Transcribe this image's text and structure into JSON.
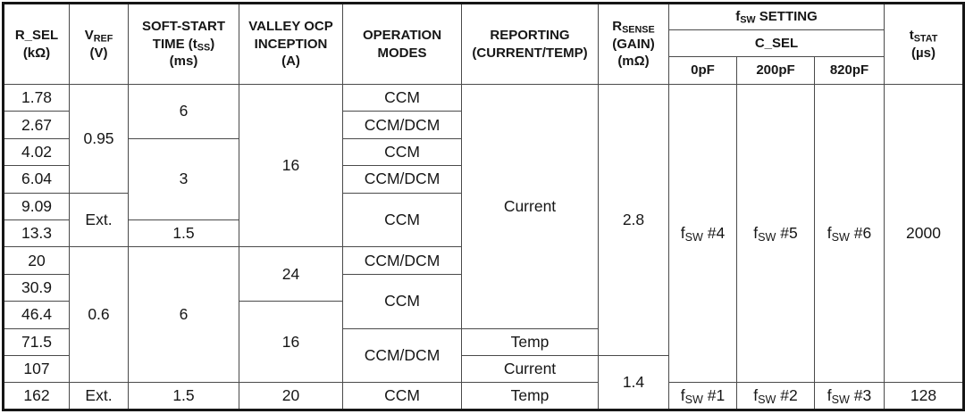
{
  "colors": {
    "background": "#ffffff",
    "text": "#161616",
    "grid_line": "#4a4a4a",
    "outer_border": "#161616"
  },
  "table": {
    "header": {
      "r_sel": [
        [
          "R_SEL"
        ],
        [
          "(kΩ)"
        ]
      ],
      "v_ref": [
        [
          "V",
          {
            "sub": "REF"
          }
        ],
        [
          "(V)"
        ]
      ],
      "soft_start": [
        [
          "SOFT-START"
        ],
        [
          "TIME (t",
          {
            "sub": "SS"
          },
          ")"
        ],
        [
          "(ms)"
        ]
      ],
      "valley_ocp": [
        [
          "VALLEY OCP"
        ],
        [
          "INCEPTION"
        ],
        [
          "(A)"
        ]
      ],
      "operation_modes": [
        [
          "OPERATION"
        ],
        [
          "MODES"
        ]
      ],
      "reporting": [
        [
          "REPORTING"
        ],
        [
          "(CURRENT/TEMP)"
        ]
      ],
      "r_sense": [
        [
          "R",
          {
            "sub": "SENSE"
          }
        ],
        [
          "(GAIN)"
        ],
        [
          "(mΩ)"
        ]
      ],
      "fsw_setting": [
        [
          "f",
          {
            "sub": "SW"
          },
          " SETTING"
        ]
      ],
      "c_sel": [
        [
          "C_SEL"
        ]
      ],
      "cap_0pf": [
        [
          "0pF"
        ]
      ],
      "cap_200pf": [
        [
          "200pF"
        ]
      ],
      "cap_820pf": [
        [
          "820pF"
        ]
      ],
      "t_stat": [
        [
          "t",
          {
            "sub": "STAT"
          }
        ],
        [
          "(µs)"
        ]
      ]
    },
    "body": {
      "rows": [
        {
          "r_sel": "1.78",
          "v_ref": "0.95",
          "soft_start": "6",
          "valley_ocp": "16",
          "mode": "CCM",
          "reporting": "Current",
          "r_sense": "2.8",
          "fsw_0pf": [
            [
              "f",
              {
                "sub": "SW"
              },
              " #4"
            ]
          ],
          "fsw_200pf": [
            [
              "f",
              {
                "sub": "SW"
              },
              " #5"
            ]
          ],
          "fsw_820pf": [
            [
              "f",
              {
                "sub": "SW"
              },
              " #6"
            ]
          ],
          "t_stat": "2000"
        },
        {
          "r_sel": "2.67",
          "mode": "CCM/DCM"
        },
        {
          "r_sel": "4.02",
          "soft_start": "3",
          "mode": "CCM"
        },
        {
          "r_sel": "6.04",
          "mode": "CCM/DCM"
        },
        {
          "r_sel": "9.09",
          "v_ref": "Ext.",
          "mode": "CCM"
        },
        {
          "r_sel": "13.3",
          "soft_start": "1.5"
        },
        {
          "r_sel": "20",
          "v_ref": "0.6",
          "soft_start": "6",
          "valley_ocp": "24",
          "mode": "CCM/DCM"
        },
        {
          "r_sel": "30.9",
          "mode": "CCM"
        },
        {
          "r_sel": "46.4",
          "valley_ocp": "16"
        },
        {
          "r_sel": "71.5",
          "mode": "CCM/DCM",
          "reporting": "Temp"
        },
        {
          "r_sel": "107",
          "reporting": "Current",
          "r_sense": "1.4"
        },
        {
          "r_sel": "162",
          "v_ref": "Ext.",
          "soft_start": "1.5",
          "valley_ocp": "20",
          "mode": "CCM",
          "reporting": "Temp",
          "fsw_0pf": [
            [
              "f",
              {
                "sub": "SW"
              },
              " #1"
            ]
          ],
          "fsw_200pf": [
            [
              "f",
              {
                "sub": "SW"
              },
              " #2"
            ]
          ],
          "fsw_820pf": [
            [
              "f",
              {
                "sub": "SW"
              },
              " #3"
            ]
          ],
          "t_stat": "128"
        }
      ]
    }
  }
}
